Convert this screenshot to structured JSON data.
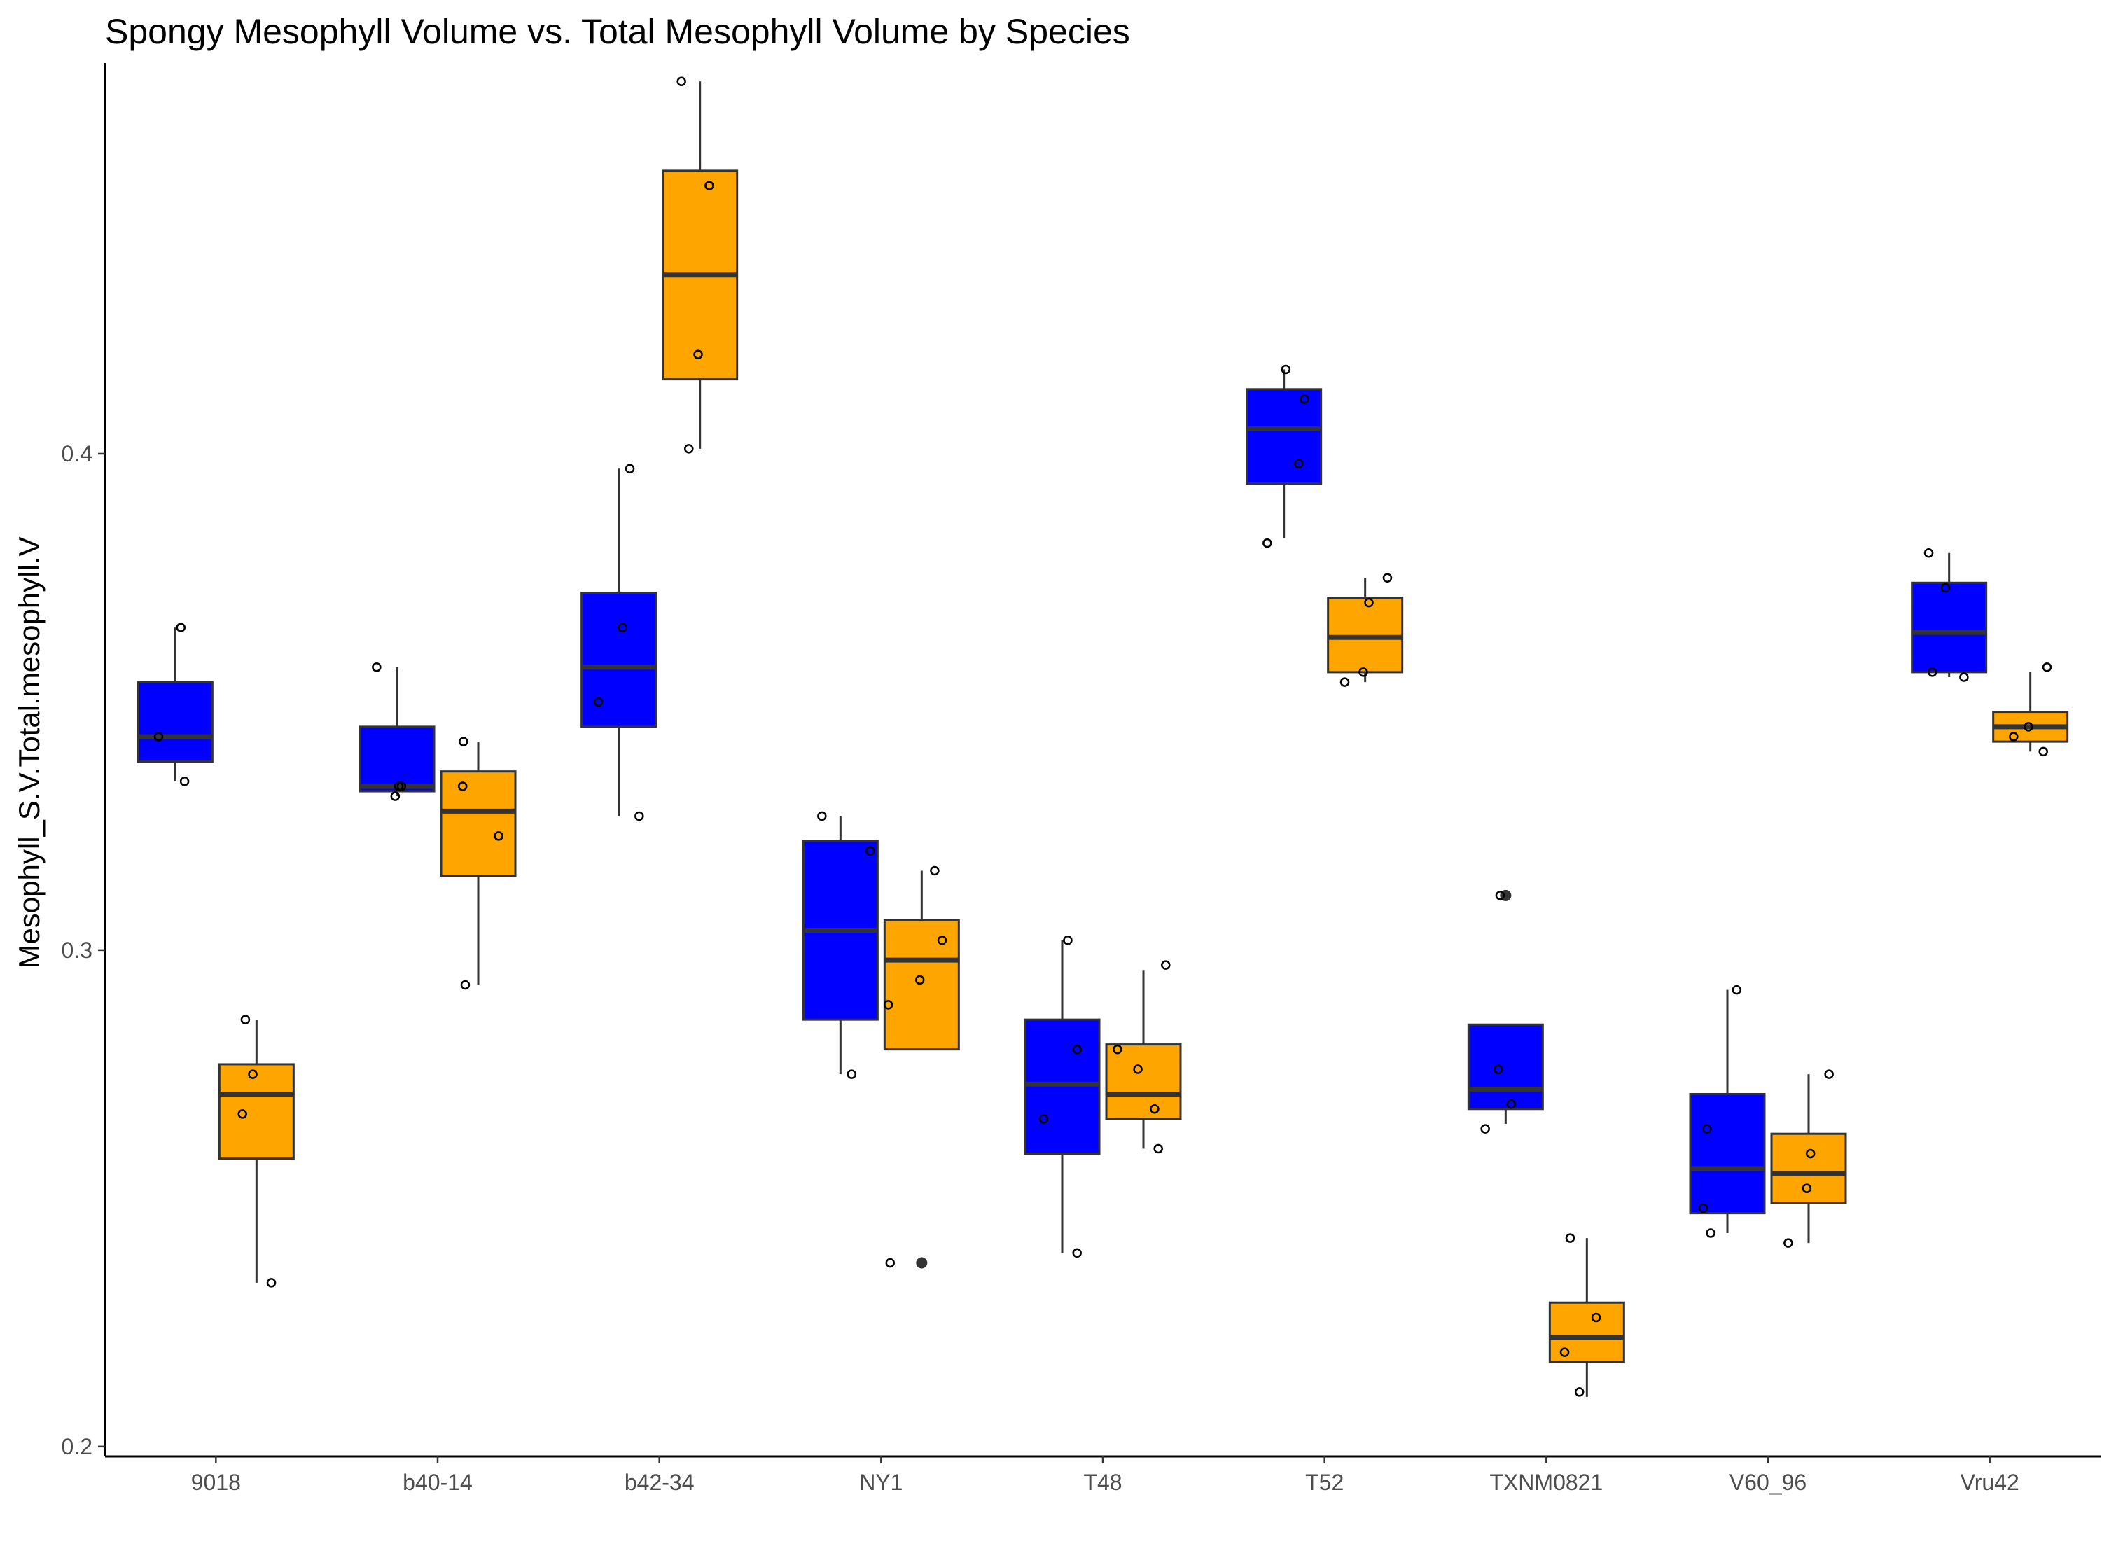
{
  "chart_data": {
    "type": "box",
    "title": "Spongy Mesophyll Volume vs. Total Mesophyll Volume by Species",
    "xlabel": "",
    "ylabel": "Mesophyll_S.V.Total.mesophyll.V",
    "ylim": [
      0.198,
      0.478
    ],
    "y_ticks": [
      0.2,
      0.3,
      0.4
    ],
    "y_tick_labels": [
      "0.2",
      "0.3",
      "0.4"
    ],
    "categories": [
      "9018",
      "b40-14",
      "b42-34",
      "NY1",
      "T48",
      "T52",
      "TXNM0821",
      "V60_96",
      "Vru42"
    ],
    "series_colors": [
      "#0000ff",
      "#ffa500"
    ],
    "boxes": [
      {
        "category": "9018",
        "series": 0,
        "lower_whisker": 0.334,
        "q1": 0.338,
        "median": 0.343,
        "q3": 0.354,
        "upper_whisker": 0.365,
        "outliers": [],
        "points": [
          [
            -0.45,
            0.343
          ],
          [
            0.15,
            0.365
          ],
          [
            0.25,
            0.334
          ]
        ]
      },
      {
        "category": "9018",
        "series": 1,
        "lower_whisker": 0.233,
        "q1": 0.258,
        "median": 0.271,
        "q3": 0.277,
        "upper_whisker": 0.286,
        "outliers": [],
        "points": [
          [
            -0.3,
            0.286
          ],
          [
            -0.38,
            0.267
          ],
          [
            -0.1,
            0.275
          ],
          [
            0.4,
            0.233
          ]
        ]
      },
      {
        "category": "b40-14",
        "series": 0,
        "lower_whisker": 0.331,
        "q1": 0.332,
        "median": 0.333,
        "q3": 0.345,
        "upper_whisker": 0.357,
        "outliers": [],
        "points": [
          [
            -0.55,
            0.357
          ],
          [
            -0.05,
            0.331
          ],
          [
            0.05,
            0.333
          ],
          [
            0.12,
            0.333
          ]
        ]
      },
      {
        "category": "b40-14",
        "series": 1,
        "lower_whisker": 0.293,
        "q1": 0.315,
        "median": 0.328,
        "q3": 0.336,
        "upper_whisker": 0.342,
        "outliers": [],
        "points": [
          [
            -0.42,
            0.333
          ],
          [
            -0.4,
            0.342
          ],
          [
            -0.35,
            0.293
          ],
          [
            0.55,
            0.323
          ]
        ]
      },
      {
        "category": "b42-34",
        "series": 0,
        "lower_whisker": 0.327,
        "q1": 0.345,
        "median": 0.357,
        "q3": 0.372,
        "upper_whisker": 0.397,
        "outliers": [],
        "points": [
          [
            -0.55,
            0.35
          ],
          [
            0.1,
            0.365
          ],
          [
            0.3,
            0.397
          ],
          [
            0.55,
            0.327
          ]
        ]
      },
      {
        "category": "b42-34",
        "series": 1,
        "lower_whisker": 0.401,
        "q1": 0.415,
        "median": 0.436,
        "q3": 0.457,
        "upper_whisker": 0.475,
        "outliers": [],
        "points": [
          [
            -0.5,
            0.475
          ],
          [
            -0.3,
            0.401
          ],
          [
            -0.05,
            0.42
          ],
          [
            0.25,
            0.454
          ]
        ]
      },
      {
        "category": "NY1",
        "series": 0,
        "lower_whisker": 0.275,
        "q1": 0.286,
        "median": 0.304,
        "q3": 0.322,
        "upper_whisker": 0.327,
        "outliers": [],
        "points": [
          [
            -0.5,
            0.327
          ],
          [
            0.3,
            0.275
          ],
          [
            0.8,
            0.32
          ]
        ]
      },
      {
        "category": "NY1",
        "series": 1,
        "lower_whisker": 0.28,
        "q1": 0.28,
        "median": 0.298,
        "q3": 0.306,
        "upper_whisker": 0.316,
        "outliers": [
          0.237
        ],
        "points": [
          [
            -0.9,
            0.289
          ],
          [
            -0.85,
            0.237
          ],
          [
            -0.05,
            0.294
          ],
          [
            0.35,
            0.316
          ],
          [
            0.55,
            0.302
          ]
        ]
      },
      {
        "category": "T48",
        "series": 0,
        "lower_whisker": 0.239,
        "q1": 0.259,
        "median": 0.273,
        "q3": 0.286,
        "upper_whisker": 0.302,
        "outliers": [],
        "points": [
          [
            -0.5,
            0.266
          ],
          [
            0.15,
            0.302
          ],
          [
            0.4,
            0.239
          ],
          [
            0.4,
            0.28
          ]
        ]
      },
      {
        "category": "T48",
        "series": 1,
        "lower_whisker": 0.26,
        "q1": 0.266,
        "median": 0.271,
        "q3": 0.281,
        "upper_whisker": 0.296,
        "outliers": [],
        "points": [
          [
            -0.7,
            0.28
          ],
          [
            -0.15,
            0.276
          ],
          [
            0.3,
            0.268
          ],
          [
            0.4,
            0.26
          ],
          [
            0.6,
            0.297
          ]
        ]
      },
      {
        "category": "T52",
        "series": 0,
        "lower_whisker": 0.383,
        "q1": 0.394,
        "median": 0.405,
        "q3": 0.413,
        "upper_whisker": 0.417,
        "outliers": [],
        "points": [
          [
            -0.45,
            0.382
          ],
          [
            0.05,
            0.417
          ],
          [
            0.4,
            0.398
          ],
          [
            0.55,
            0.411
          ]
        ]
      },
      {
        "category": "T52",
        "series": 1,
        "lower_whisker": 0.354,
        "q1": 0.356,
        "median": 0.363,
        "q3": 0.371,
        "upper_whisker": 0.375,
        "outliers": [],
        "points": [
          [
            -0.55,
            0.354
          ],
          [
            -0.05,
            0.356
          ],
          [
            0.1,
            0.37
          ],
          [
            0.6,
            0.375
          ]
        ]
      },
      {
        "category": "TXNM0821",
        "series": 0,
        "lower_whisker": 0.265,
        "q1": 0.268,
        "median": 0.272,
        "q3": 0.285,
        "upper_whisker": 0.285,
        "outliers": [
          0.311
        ],
        "points": [
          [
            -0.55,
            0.264
          ],
          [
            -0.15,
            0.311
          ],
          [
            -0.2,
            0.276
          ],
          [
            0.15,
            0.269
          ]
        ]
      },
      {
        "category": "TXNM0821",
        "series": 1,
        "lower_whisker": 0.21,
        "q1": 0.217,
        "median": 0.222,
        "q3": 0.229,
        "upper_whisker": 0.242,
        "outliers": [],
        "points": [
          [
            -0.6,
            0.219
          ],
          [
            -0.45,
            0.242
          ],
          [
            -0.2,
            0.211
          ],
          [
            0.25,
            0.226
          ]
        ]
      },
      {
        "category": "V60_96",
        "series": 0,
        "lower_whisker": 0.243,
        "q1": 0.247,
        "median": 0.256,
        "q3": 0.271,
        "upper_whisker": 0.292,
        "outliers": [],
        "points": [
          [
            -0.65,
            0.248
          ],
          [
            -0.55,
            0.264
          ],
          [
            -0.45,
            0.243
          ],
          [
            0.25,
            0.292
          ]
        ]
      },
      {
        "category": "V60_96",
        "series": 1,
        "lower_whisker": 0.241,
        "q1": 0.249,
        "median": 0.255,
        "q3": 0.263,
        "upper_whisker": 0.275,
        "outliers": [],
        "points": [
          [
            -0.55,
            0.241
          ],
          [
            -0.05,
            0.252
          ],
          [
            0.05,
            0.259
          ],
          [
            0.55,
            0.275
          ]
        ]
      },
      {
        "category": "Vru42",
        "series": 0,
        "lower_whisker": 0.355,
        "q1": 0.356,
        "median": 0.364,
        "q3": 0.374,
        "upper_whisker": 0.38,
        "outliers": [],
        "points": [
          [
            -0.55,
            0.38
          ],
          [
            -0.45,
            0.356
          ],
          [
            -0.1,
            0.373
          ],
          [
            0.4,
            0.355
          ]
        ]
      },
      {
        "category": "Vru42",
        "series": 1,
        "lower_whisker": 0.34,
        "q1": 0.342,
        "median": 0.345,
        "q3": 0.348,
        "upper_whisker": 0.356,
        "outliers": [],
        "points": [
          [
            -0.45,
            0.343
          ],
          [
            -0.05,
            0.345
          ],
          [
            0.35,
            0.34
          ],
          [
            0.45,
            0.357
          ]
        ]
      }
    ]
  }
}
